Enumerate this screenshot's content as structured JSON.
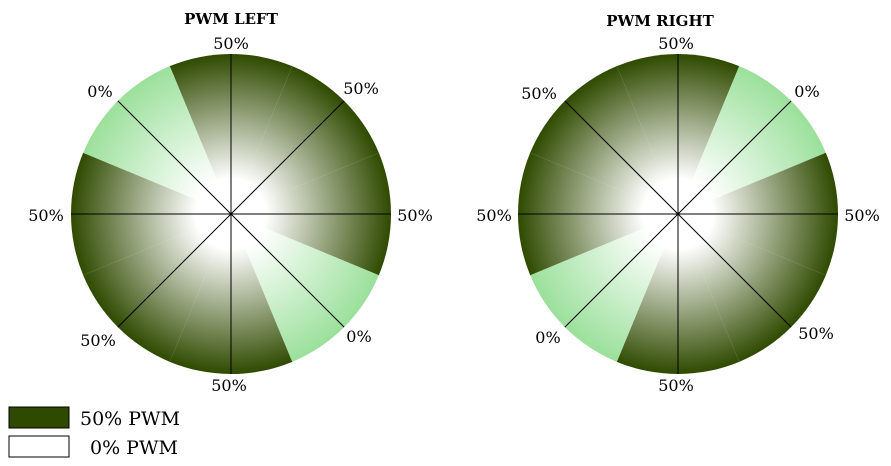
{
  "diagrams": [
    {
      "title": "PWM LEFT",
      "labels": [
        "50%",
        "50%",
        "50%",
        "0%",
        "50%",
        "50%",
        "50%",
        "0%"
      ]
    },
    {
      "title": "PWM RIGHT",
      "labels": [
        "50%",
        "0%",
        "50%",
        "50%",
        "50%",
        "0%",
        "50%",
        "50%"
      ]
    }
  ],
  "legend": {
    "dark_label": "50% PWM",
    "light_label": "0% PWM"
  },
  "colors": {
    "dark": "#2f4a00",
    "light": "#9be09b",
    "center": "#ffffff"
  }
}
